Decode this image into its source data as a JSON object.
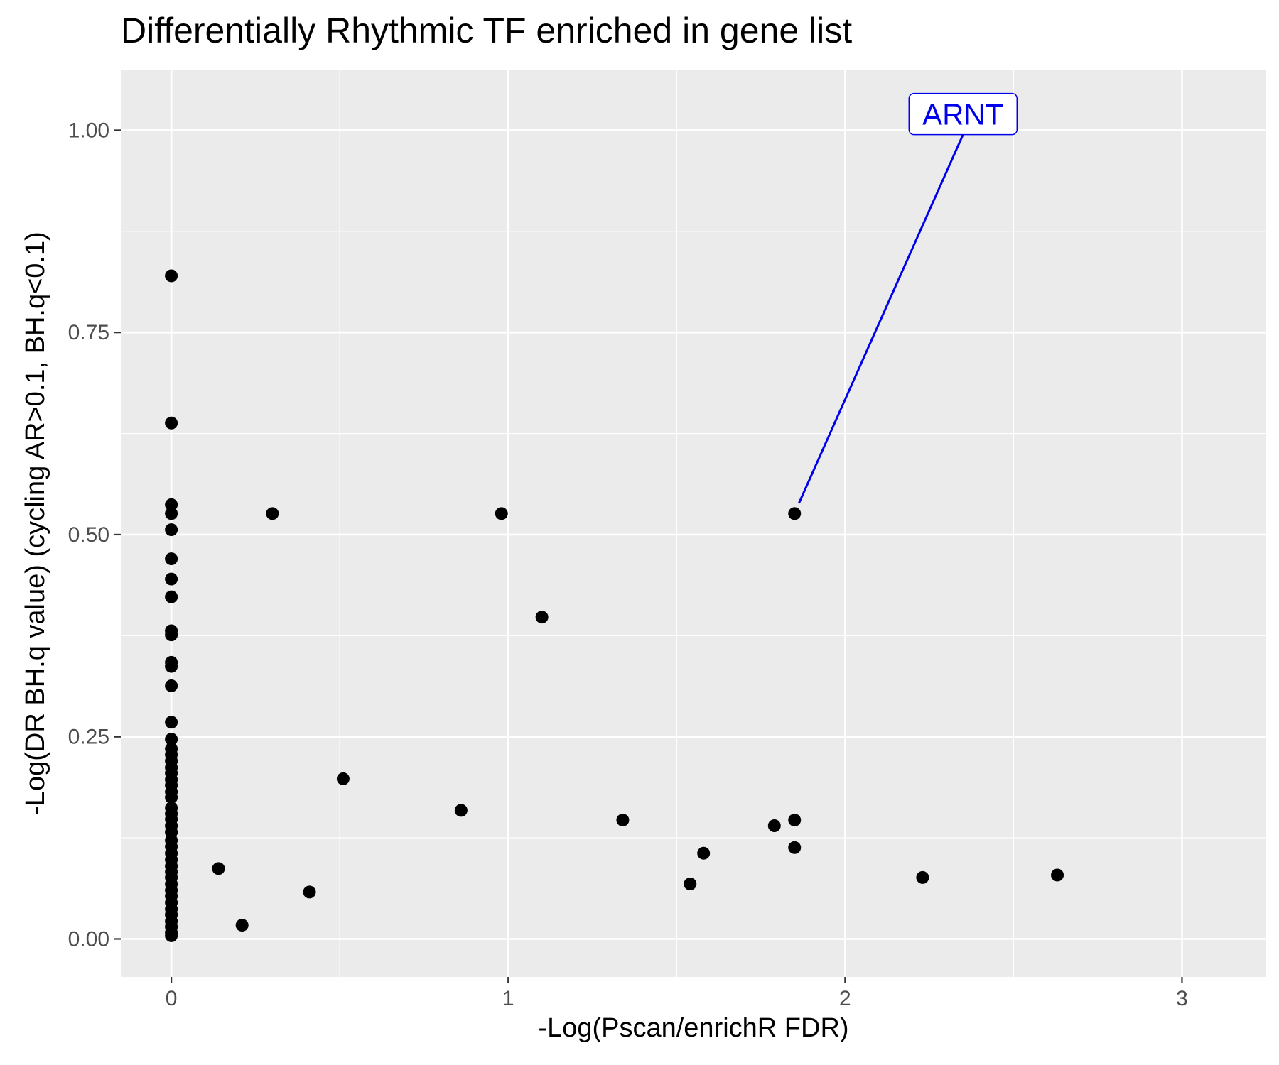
{
  "chart_data": {
    "type": "scatter",
    "title": "Differentially Rhythmic TF enriched in gene list",
    "xlabel": "-Log(Pscan/enrichR FDR)",
    "ylabel": "-Log(DR BH.q value)  (cycling AR>0.1, BH.q<0.1)",
    "xlim": [
      -0.15,
      3.25
    ],
    "ylim": [
      -0.047,
      1.075
    ],
    "x_ticks": [
      0,
      1,
      2,
      3
    ],
    "x_tick_labels": [
      "0",
      "1",
      "2",
      "3"
    ],
    "y_ticks": [
      0,
      0.25,
      0.5,
      0.75,
      1.0
    ],
    "y_tick_labels": [
      "0.00",
      "0.25",
      "0.50",
      "0.75",
      "1.00"
    ],
    "grid": true,
    "background": "#ebebeb",
    "point_color": "#000000",
    "annotation_color": "#0000ee",
    "points": [
      {
        "x": 0,
        "y": 0.82
      },
      {
        "x": 0,
        "y": 0.638
      },
      {
        "x": 0,
        "y": 0.537
      },
      {
        "x": 0,
        "y": 0.526
      },
      {
        "x": 0,
        "y": 0.506
      },
      {
        "x": 0,
        "y": 0.47
      },
      {
        "x": 0,
        "y": 0.445
      },
      {
        "x": 0,
        "y": 0.423
      },
      {
        "x": 0,
        "y": 0.381
      },
      {
        "x": 0,
        "y": 0.376
      },
      {
        "x": 0,
        "y": 0.342
      },
      {
        "x": 0,
        "y": 0.337
      },
      {
        "x": 0,
        "y": 0.313
      },
      {
        "x": 0,
        "y": 0.268
      },
      {
        "x": 0,
        "y": 0.247
      },
      {
        "x": 0,
        "y": 0.235
      },
      {
        "x": 0,
        "y": 0.228
      },
      {
        "x": 0,
        "y": 0.22
      },
      {
        "x": 0,
        "y": 0.212
      },
      {
        "x": 0,
        "y": 0.205
      },
      {
        "x": 0,
        "y": 0.197
      },
      {
        "x": 0,
        "y": 0.19
      },
      {
        "x": 0,
        "y": 0.182
      },
      {
        "x": 0,
        "y": 0.175
      },
      {
        "x": 0,
        "y": 0.162
      },
      {
        "x": 0,
        "y": 0.155
      },
      {
        "x": 0,
        "y": 0.148
      },
      {
        "x": 0,
        "y": 0.14
      },
      {
        "x": 0,
        "y": 0.132
      },
      {
        "x": 0,
        "y": 0.122
      },
      {
        "x": 0,
        "y": 0.114
      },
      {
        "x": 0,
        "y": 0.106
      },
      {
        "x": 0,
        "y": 0.098
      },
      {
        "x": 0,
        "y": 0.09
      },
      {
        "x": 0,
        "y": 0.083
      },
      {
        "x": 0,
        "y": 0.076
      },
      {
        "x": 0,
        "y": 0.068
      },
      {
        "x": 0,
        "y": 0.06
      },
      {
        "x": 0,
        "y": 0.053
      },
      {
        "x": 0,
        "y": 0.045
      },
      {
        "x": 0,
        "y": 0.037
      },
      {
        "x": 0,
        "y": 0.03
      },
      {
        "x": 0,
        "y": 0.022
      },
      {
        "x": 0,
        "y": 0.015
      },
      {
        "x": 0,
        "y": 0.008
      },
      {
        "x": 0,
        "y": 0.004
      },
      {
        "x": 0.3,
        "y": 0.526
      },
      {
        "x": 0.98,
        "y": 0.526
      },
      {
        "x": 1.85,
        "y": 0.526
      },
      {
        "x": 1.1,
        "y": 0.398
      },
      {
        "x": 0.51,
        "y": 0.198
      },
      {
        "x": 0.86,
        "y": 0.159
      },
      {
        "x": 1.34,
        "y": 0.147
      },
      {
        "x": 1.79,
        "y": 0.14
      },
      {
        "x": 1.85,
        "y": 0.147
      },
      {
        "x": 1.85,
        "y": 0.113
      },
      {
        "x": 1.58,
        "y": 0.106
      },
      {
        "x": 1.54,
        "y": 0.068
      },
      {
        "x": 2.23,
        "y": 0.076
      },
      {
        "x": 2.63,
        "y": 0.079
      },
      {
        "x": 0.14,
        "y": 0.087
      },
      {
        "x": 0.41,
        "y": 0.058
      },
      {
        "x": 0.21,
        "y": 0.017
      }
    ],
    "annotations": [
      {
        "label": "ARNT",
        "x": 1.85,
        "y": 0.526,
        "label_x": 2.35,
        "label_y": 1.02
      }
    ]
  }
}
